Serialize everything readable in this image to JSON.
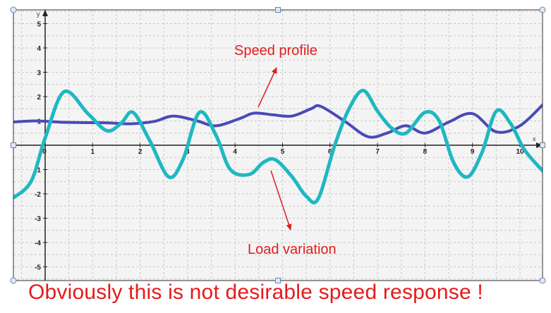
{
  "chart_data": {
    "type": "line",
    "title": "",
    "xlabel": "x",
    "ylabel": "y",
    "xlim": [
      -0.7,
      10.5
    ],
    "ylim": [
      -5.6,
      5.6
    ],
    "grid": true,
    "x_ticks": [
      0,
      1,
      2,
      3,
      4,
      5,
      6,
      7,
      8,
      9,
      10
    ],
    "y_ticks": [
      -5,
      -4,
      -3,
      -2,
      -1,
      1,
      2,
      3,
      4,
      5
    ],
    "series": [
      {
        "name": "Speed profile",
        "color": "#4a4ab8",
        "x": [
          -0.7,
          -0.2,
          0.3,
          0.8,
          1.3,
          1.8,
          2.3,
          2.7,
          3.2,
          3.6,
          4.1,
          4.4,
          4.8,
          5.2,
          5.6,
          5.8,
          6.3,
          6.8,
          7.2,
          7.6,
          8.0,
          8.5,
          9.0,
          9.5,
          10.0,
          10.5
        ],
        "y": [
          0.95,
          1.0,
          0.95,
          0.93,
          0.92,
          0.88,
          0.98,
          1.2,
          1.0,
          0.8,
          1.1,
          1.32,
          1.25,
          1.2,
          1.5,
          1.6,
          1.0,
          0.35,
          0.5,
          0.8,
          0.5,
          0.95,
          1.3,
          0.55,
          0.8,
          1.7
        ]
      },
      {
        "name": "Load variation",
        "color": "#1fb8c2",
        "x": [
          -0.7,
          -0.3,
          0.0,
          0.4,
          0.9,
          1.3,
          1.6,
          1.85,
          2.2,
          2.6,
          2.9,
          3.25,
          3.6,
          3.9,
          4.3,
          4.6,
          4.85,
          5.2,
          5.5,
          5.75,
          6.1,
          6.4,
          6.7,
          7.0,
          7.3,
          7.6,
          8.0,
          8.3,
          8.6,
          8.9,
          9.2,
          9.5,
          9.8,
          10.1,
          10.5
        ],
        "y": [
          -2.2,
          -1.5,
          0.3,
          2.2,
          1.3,
          0.6,
          0.9,
          1.35,
          0.2,
          -1.3,
          -0.6,
          1.35,
          0.4,
          -1.0,
          -1.2,
          -0.7,
          -0.6,
          -1.3,
          -2.1,
          -2.2,
          0.0,
          1.5,
          2.25,
          1.4,
          0.7,
          0.5,
          1.35,
          1.0,
          -0.7,
          -1.3,
          -0.3,
          1.4,
          0.9,
          -0.2,
          -1.1
        ]
      }
    ],
    "annotations": [
      {
        "text": "Speed profile",
        "color": "#e41b1b"
      },
      {
        "text": "Load variation",
        "color": "#e41b1b"
      }
    ]
  },
  "caption": "Obviously this is not desirable speed response !"
}
